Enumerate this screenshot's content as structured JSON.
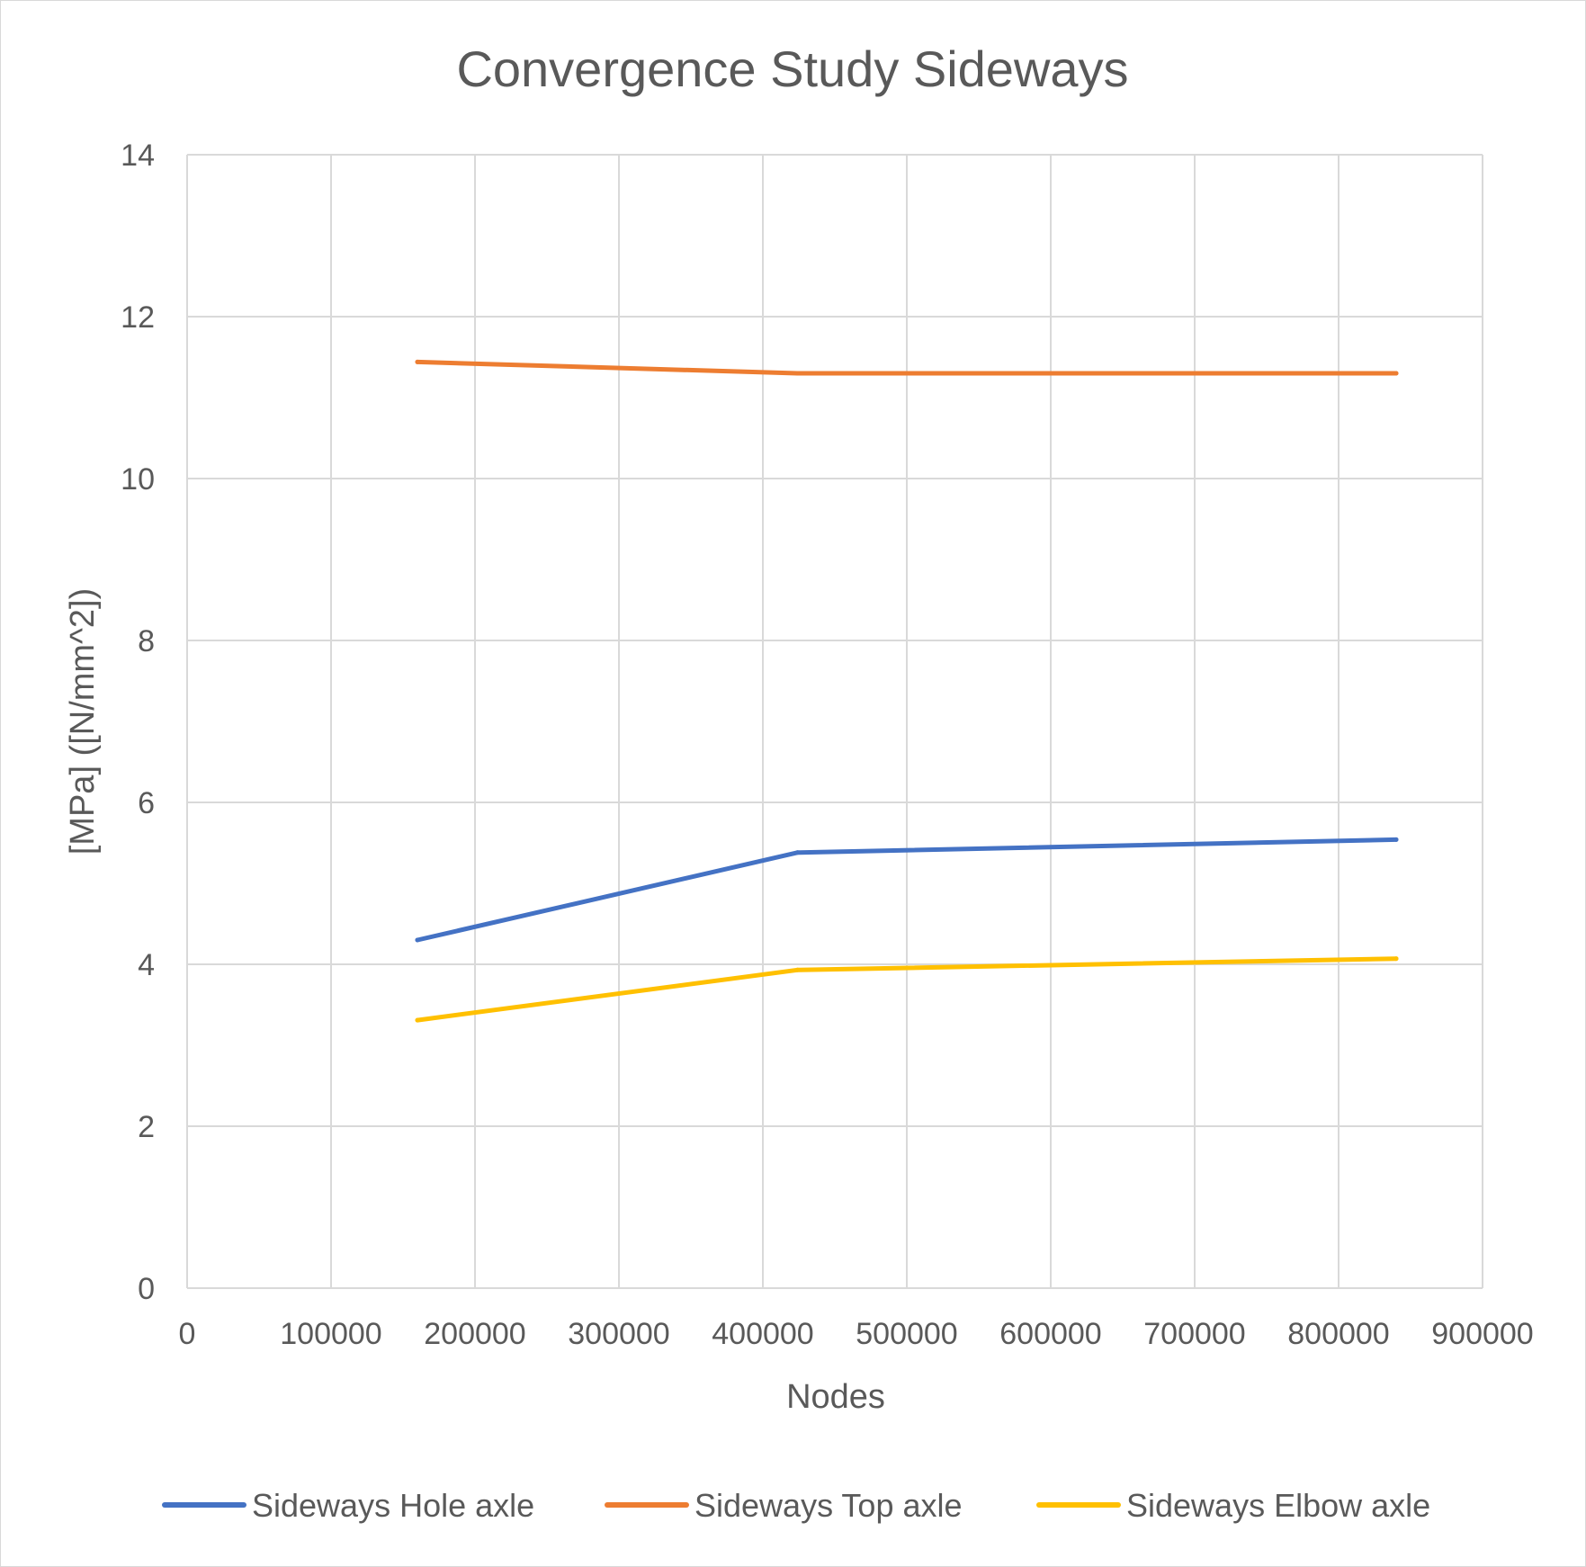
{
  "chart_data": {
    "type": "line",
    "title": "Convergence Study Sideways",
    "xlabel": "Nodes",
    "ylabel": "[MPa]  ([N/mm^2])",
    "xlim": [
      0,
      900000
    ],
    "ylim": [
      0,
      14
    ],
    "x_ticks": [
      "0",
      "100000",
      "200000",
      "300000",
      "400000",
      "500000",
      "600000",
      "700000",
      "800000",
      "900000"
    ],
    "y_ticks": [
      "0",
      "2",
      "4",
      "6",
      "8",
      "10",
      "12",
      "14"
    ],
    "grid": true,
    "legend_position": "bottom",
    "x": [
      160000,
      424000,
      840000
    ],
    "series": [
      {
        "name": "Sideways Hole axle",
        "color": "#4472c4",
        "values": [
          4.3,
          5.38,
          5.54
        ]
      },
      {
        "name": "Sideways Top axle",
        "color": "#ed7d31",
        "values": [
          11.44,
          11.3,
          11.3
        ]
      },
      {
        "name": "Sideways Elbow axle",
        "color": "#ffc000",
        "values": [
          3.31,
          3.93,
          4.07
        ]
      }
    ]
  }
}
